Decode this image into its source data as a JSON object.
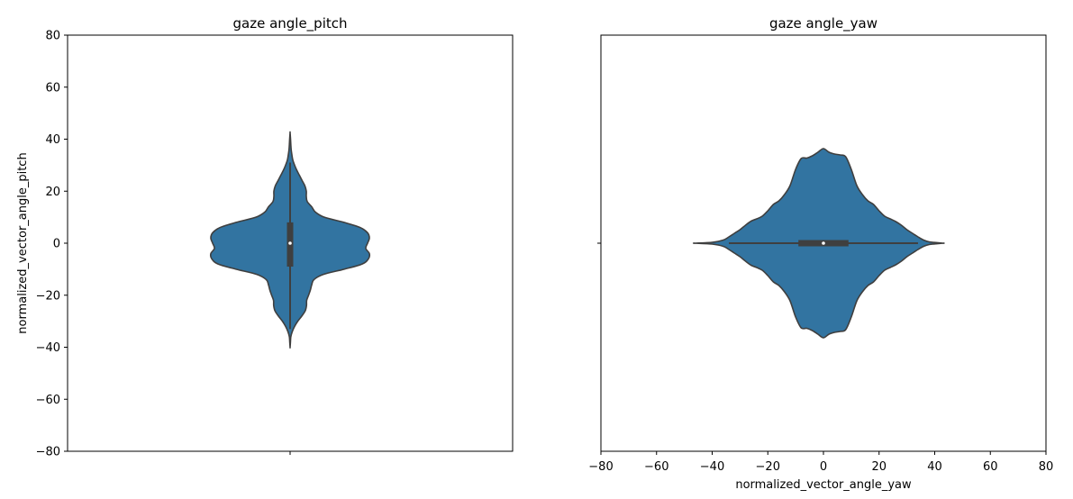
{
  "chart_data": [
    {
      "type": "violin",
      "orientation": "vertical",
      "title": "gaze angle_pitch",
      "xlabel": "",
      "ylabel": "normalized_vector_angle_pitch",
      "ylim": [
        -80,
        80
      ],
      "ticks": [
        "80",
        "60",
        "40",
        "20",
        "0",
        "−20",
        "−40",
        "−60",
        "−80"
      ],
      "tick_values": [
        80,
        60,
        40,
        20,
        0,
        -20,
        -40,
        -60,
        -80
      ],
      "fill_color": "#3274a1",
      "stats": {
        "median": 0,
        "q1": -9,
        "q3": 8,
        "whisker_low": -33,
        "whisker_high": 31,
        "min": -40,
        "max": 42.5
      },
      "density": {
        "values": [
          -40,
          -38,
          -36,
          -34,
          -32,
          -30,
          -28,
          -26,
          -24,
          -22,
          -20,
          -18,
          -16,
          -14,
          -12,
          -10,
          -8,
          -6,
          -4,
          -2,
          0,
          2,
          4,
          6,
          8,
          10,
          12,
          14,
          16,
          18,
          20,
          22,
          24,
          26,
          28,
          30,
          32,
          34,
          36,
          38,
          40,
          42.5
        ],
        "half_widths": [
          0,
          0.4,
          0.8,
          2.4,
          5.0,
          8.5,
          13.0,
          16.8,
          18.2,
          18.4,
          20.5,
          22.5,
          24.0,
          26.5,
          37.0,
          60.0,
          80.0,
          87.0,
          88.0,
          84.0,
          86.0,
          88.0,
          86.0,
          78.0,
          60.0,
          38.0,
          28.0,
          24.0,
          19.0,
          18.0,
          18.0,
          16.5,
          13.5,
          10.5,
          7.5,
          5.0,
          3.0,
          2.0,
          1.2,
          0.8,
          0.5,
          0
        ]
      }
    },
    {
      "type": "violin",
      "orientation": "horizontal",
      "title": "gaze angle_yaw",
      "xlabel": "normalized_vector_angle_yaw",
      "ylabel": "",
      "xlim": [
        -80,
        80
      ],
      "ticks": [
        "−80",
        "−60",
        "−40",
        "−20",
        "0",
        "20",
        "40",
        "60",
        "80"
      ],
      "tick_values": [
        -80,
        -60,
        -40,
        -20,
        0,
        20,
        40,
        60,
        80
      ],
      "fill_color": "#3274a1",
      "stats": {
        "median": 0,
        "q1": -9,
        "q3": 9,
        "whisker_low": -34,
        "whisker_high": 34,
        "min": -46,
        "max": 43
      },
      "density": {
        "values": [
          -46,
          -40,
          -36,
          -34,
          -32,
          -30,
          -28,
          -26,
          -24,
          -22,
          -20,
          -18,
          -16,
          -14,
          -12,
          -10,
          -8,
          -6,
          -4,
          -2,
          0,
          2,
          4,
          6,
          8,
          10,
          12,
          14,
          16,
          18,
          20,
          22,
          24,
          26,
          28,
          30,
          32,
          34,
          36,
          38,
          40,
          43
        ],
        "half_widths": [
          0,
          1.0,
          3.5,
          7.0,
          11.0,
          15.0,
          20.0,
          24.5,
          27.0,
          30.0,
          36.0,
          43.0,
          47.0,
          54.0,
          64.0,
          82.0,
          94.0,
          94.5,
          97.0,
          101.0,
          105.0,
          101.0,
          99.0,
          98.0,
          96.0,
          82.0,
          64.0,
          54.0,
          47.0,
          43.0,
          36.0,
          30.0,
          27.0,
          24.0,
          20.0,
          15.0,
          11.0,
          7.0,
          3.5,
          1.5,
          0.8,
          0
        ]
      }
    }
  ]
}
